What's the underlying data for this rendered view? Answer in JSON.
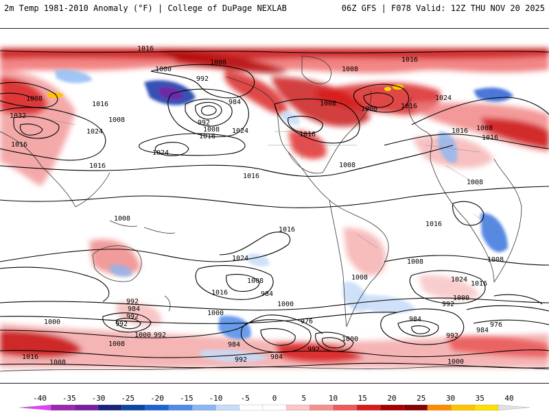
{
  "header": {
    "left": "2m Temp 1981-2010 Anomaly (°F) | College of DuPage NEXLAB",
    "right": "06Z GFS | F078 Valid: 12Z THU NOV 20 2025"
  },
  "map": {
    "projection": "equirectangular",
    "isobar_labels": [
      {
        "text": "1016"
      },
      {
        "text": "1008"
      },
      {
        "text": "1000"
      },
      {
        "text": "992"
      },
      {
        "text": "984"
      },
      {
        "text": "1008"
      },
      {
        "text": "1016"
      },
      {
        "text": "1008"
      },
      {
        "text": "1032"
      },
      {
        "text": "1016"
      },
      {
        "text": "1008"
      },
      {
        "text": "1024"
      },
      {
        "text": "992"
      },
      {
        "text": "1008"
      },
      {
        "text": "1016"
      },
      {
        "text": "1024"
      },
      {
        "text": "1016"
      },
      {
        "text": "1024"
      },
      {
        "text": "1016"
      },
      {
        "text": "1008"
      },
      {
        "text": "1000"
      },
      {
        "text": "1016"
      },
      {
        "text": "1008"
      },
      {
        "text": "1024"
      },
      {
        "text": "1016"
      },
      {
        "text": "1008"
      },
      {
        "text": "1016"
      },
      {
        "text": "1008"
      },
      {
        "text": "1008"
      },
      {
        "text": "1016"
      },
      {
        "text": "1016"
      },
      {
        "text": "1016"
      },
      {
        "text": "1024"
      },
      {
        "text": "1008"
      },
      {
        "text": "1008"
      },
      {
        "text": "1024"
      },
      {
        "text": "1016"
      },
      {
        "text": "1008"
      },
      {
        "text": "1016"
      },
      {
        "text": "1008"
      },
      {
        "text": "992"
      },
      {
        "text": "984"
      },
      {
        "text": "1016"
      },
      {
        "text": "984"
      },
      {
        "text": "1000"
      },
      {
        "text": "976"
      },
      {
        "text": "992"
      },
      {
        "text": "1000"
      },
      {
        "text": "992"
      },
      {
        "text": "1000"
      },
      {
        "text": "984"
      },
      {
        "text": "992"
      },
      {
        "text": "976"
      },
      {
        "text": "984"
      },
      {
        "text": "992"
      },
      {
        "text": "1000"
      },
      {
        "text": "1008"
      },
      {
        "text": "1000"
      },
      {
        "text": "992"
      },
      {
        "text": "984"
      },
      {
        "text": "992"
      },
      {
        "text": "1000"
      },
      {
        "text": "1016"
      },
      {
        "text": "1008"
      },
      {
        "text": "992"
      },
      {
        "text": "984"
      },
      {
        "text": "1000"
      }
    ]
  },
  "colorbar": {
    "ticks": [
      "-40",
      "-35",
      "-30",
      "-25",
      "-20",
      "-15",
      "-10",
      "-5",
      "0",
      "5",
      "10",
      "15",
      "20",
      "25",
      "30",
      "35",
      "40"
    ],
    "colors": [
      "#e040fb",
      "#9c27b0",
      "#7b1fa2",
      "#1a237e",
      "#0d47a1",
      "#1e63d6",
      "#4f8be8",
      "#8ab6f2",
      "#c7dcf8",
      "#ffffff",
      "#ffffff",
      "#fbc7c7",
      "#f59090",
      "#ef5b5b",
      "#d81b1b",
      "#a80000",
      "#8b0000",
      "#ff8c00",
      "#ffc400",
      "#ffe000",
      "#e0e0e0"
    ]
  }
}
